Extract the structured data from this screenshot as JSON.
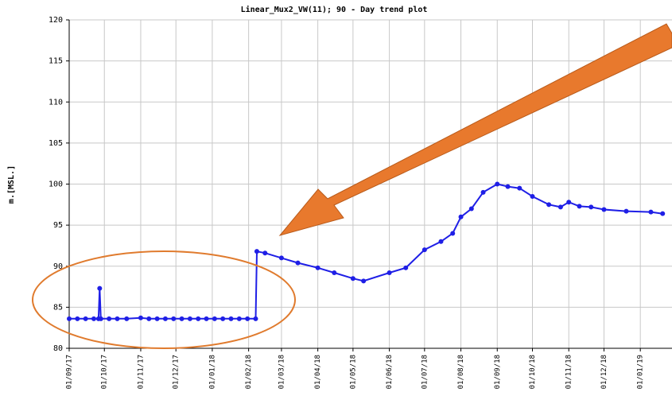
{
  "chart_data": {
    "type": "line",
    "title": "Linear_Mux2_VW(11); 90 - Day trend plot",
    "y_label": "m.[MSL.]",
    "x": [
      "01/09/17",
      "08/09/17",
      "15/09/17",
      "22/09/17",
      "26/09/17",
      "27/09/17",
      "28/09/17",
      "05/10/17",
      "12/10/17",
      "20/10/17",
      "01/11/17",
      "08/11/17",
      "15/11/17",
      "22/11/17",
      "29/11/17",
      "06/12/17",
      "13/12/17",
      "20/12/17",
      "27/12/17",
      "03/01/18",
      "10/01/18",
      "17/01/18",
      "24/01/18",
      "31/01/18",
      "07/02/18",
      "08/02/18",
      "15/02/18",
      "01/03/18",
      "15/03/18",
      "01/04/18",
      "15/04/18",
      "01/05/18",
      "10/05/18",
      "01/06/18",
      "15/06/18",
      "01/07/18",
      "15/07/18",
      "25/07/18",
      "01/08/18",
      "10/08/18",
      "20/08/18",
      "01/09/18",
      "10/09/18",
      "20/09/18",
      "01/10/18",
      "15/10/18",
      "25/10/18",
      "01/11/18",
      "10/11/18",
      "20/11/18",
      "01/12/18",
      "20/12/18",
      "10/01/19",
      "20/01/19"
    ],
    "series": [
      {
        "color": "#1f1fe6",
        "values": [
          83.6,
          83.6,
          83.6,
          83.6,
          83.6,
          87.3,
          83.6,
          83.6,
          83.6,
          83.6,
          83.7,
          83.6,
          83.6,
          83.6,
          83.6,
          83.6,
          83.6,
          83.6,
          83.6,
          83.6,
          83.6,
          83.6,
          83.6,
          83.6,
          83.6,
          91.8,
          91.6,
          91.0,
          90.4,
          89.8,
          89.2,
          88.5,
          88.2,
          89.2,
          89.8,
          92.0,
          93.0,
          94.0,
          96.0,
          97.0,
          99.0,
          100.0,
          99.7,
          99.5,
          98.5,
          97.5,
          97.2,
          97.8,
          97.3,
          97.2,
          96.9,
          96.7,
          96.6,
          96.4
        ]
      }
    ],
    "xlim": [
      "01/09/17",
      "28/01/19"
    ],
    "xticks": [
      "01/09/17",
      "01/10/17",
      "01/11/17",
      "01/12/17",
      "01/01/18",
      "01/02/18",
      "01/03/18",
      "01/04/18",
      "01/05/18",
      "01/06/18",
      "01/07/18",
      "01/08/18",
      "01/09/18",
      "01/10/18",
      "01/11/18",
      "01/12/18",
      "01/01/19"
    ],
    "ylim": [
      80,
      120
    ],
    "yticks": [
      80,
      85,
      90,
      95,
      100,
      105,
      110,
      115,
      120
    ],
    "grid": true
  }
}
